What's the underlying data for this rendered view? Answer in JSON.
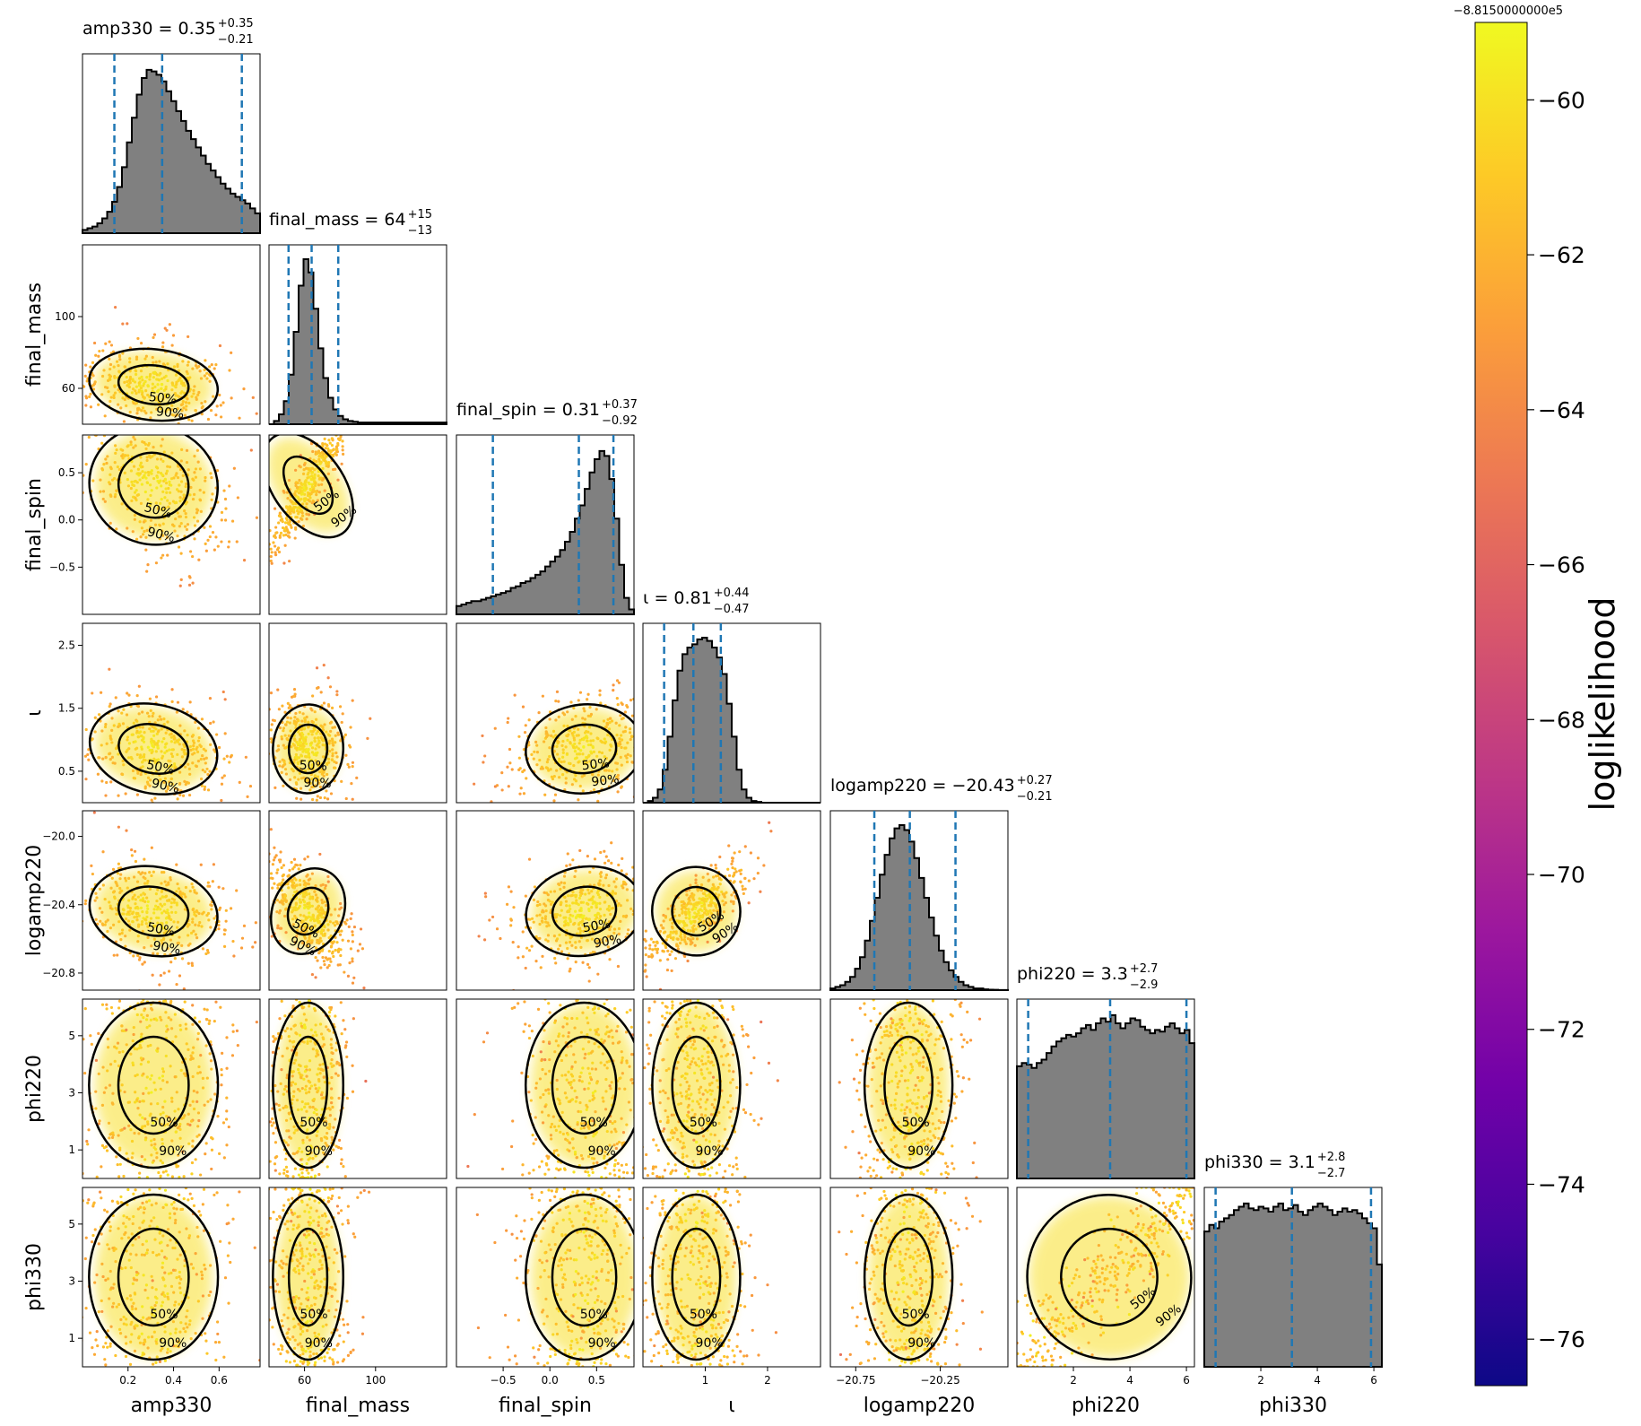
{
  "chart_data": {
    "type": "corner",
    "parameters": [
      {
        "name": "amp330",
        "label": "amp330",
        "range": [
          0.0,
          0.78
        ],
        "ticks": [
          0.2,
          0.4,
          0.6
        ],
        "tick_labels": [
          "0.2",
          "0.4",
          "0.6"
        ],
        "title": {
          "text": "amp330 = 0.35",
          "sup": "+0.35",
          "sub": "−0.21"
        },
        "median": 0.35,
        "lower": 0.14,
        "upper": 0.7
      },
      {
        "name": "final_mass",
        "label": "final_mass",
        "range": [
          40,
          140
        ],
        "ticks": [
          60,
          100
        ],
        "tick_labels": [
          "60",
          "100"
        ],
        "title": {
          "text": "final_mass = 64",
          "sup": "+15",
          "sub": "−13"
        },
        "median": 64,
        "lower": 51,
        "upper": 79
      },
      {
        "name": "final_spin",
        "label": "final_spin",
        "range": [
          -1.0,
          0.9
        ],
        "ticks": [
          -0.5,
          0.0,
          0.5
        ],
        "tick_labels": [
          "−0.5",
          "0.0",
          "0.5"
        ],
        "title": {
          "text": "final_spin = 0.31",
          "sup": "+0.37",
          "sub": "−0.92"
        },
        "median": 0.31,
        "lower": -0.61,
        "upper": 0.68
      },
      {
        "name": "iota",
        "label": "ι",
        "range": [
          0.0,
          2.85
        ],
        "ticks": [
          0.5,
          1.5,
          2.5
        ],
        "tick_labels": [
          "0.5",
          "1.5",
          "2.5"
        ],
        "xticks": [
          1,
          2
        ],
        "xtick_labels": [
          "1",
          "2"
        ],
        "title": {
          "text": "ι = 0.81",
          "sup": "+0.44",
          "sub": "−0.47"
        },
        "median": 0.81,
        "lower": 0.34,
        "upper": 1.25
      },
      {
        "name": "logamp220",
        "label": "logamp220",
        "range": [
          -20.9,
          -19.85
        ],
        "ticks": [
          -20.8,
          -20.4,
          -20.0
        ],
        "tick_labels": [
          "−20.8",
          "−20.4",
          "−20.0"
        ],
        "xticks": [
          -20.75,
          -20.25
        ],
        "xtick_labels": [
          "−20.75",
          "−20.25"
        ],
        "title": {
          "text": "logamp220 = −20.43",
          "sup": "+0.27",
          "sub": "−0.21"
        },
        "median": -20.43,
        "lower": -20.64,
        "upper": -20.16
      },
      {
        "name": "phi220",
        "label": "phi220",
        "range": [
          0.0,
          6.283
        ],
        "ticks": [
          1,
          3,
          5
        ],
        "tick_labels": [
          "1",
          "3",
          "5"
        ],
        "xticks": [
          2,
          4,
          6
        ],
        "xtick_labels": [
          "2",
          "4",
          "6"
        ],
        "title": {
          "text": "phi220 = 3.3",
          "sup": "+2.7",
          "sub": "−2.9"
        },
        "median": 3.3,
        "lower": 0.4,
        "upper": 6.0
      },
      {
        "name": "phi330",
        "label": "phi330",
        "range": [
          0.0,
          6.283
        ],
        "ticks": [
          1,
          3,
          5
        ],
        "tick_labels": [
          "1",
          "3",
          "5"
        ],
        "xticks": [
          2,
          4,
          6
        ],
        "xtick_labels": [
          "2",
          "4",
          "6"
        ],
        "title": {
          "text": "phi330 = 3.1",
          "sup": "+2.8",
          "sub": "−2.7"
        },
        "median": 3.1,
        "lower": 0.4,
        "upper": 5.9
      }
    ],
    "histograms": [
      [
        2,
        3,
        4,
        6,
        9,
        13,
        19,
        28,
        40,
        55,
        70,
        84,
        94,
        99,
        98,
        96,
        92,
        86,
        80,
        74,
        68,
        62,
        57,
        52,
        47,
        42,
        38,
        34,
        30,
        27,
        24,
        22,
        20,
        18,
        15,
        12
      ],
      [
        0,
        2,
        6,
        14,
        30,
        56,
        84,
        100,
        92,
        70,
        46,
        28,
        16,
        9,
        5,
        3,
        2,
        1.5,
        1,
        1,
        1,
        1,
        1,
        1,
        1,
        1,
        1,
        1,
        1,
        1,
        1,
        1,
        1,
        1,
        1,
        1
      ],
      [
        5,
        6,
        7,
        8,
        8,
        9,
        10,
        11,
        12,
        13,
        14,
        16,
        17,
        19,
        20,
        22,
        24,
        26,
        29,
        32,
        35,
        39,
        44,
        50,
        58,
        66,
        76,
        86,
        94,
        99,
        96,
        82,
        58,
        30,
        10,
        3
      ],
      [
        0,
        1,
        3,
        8,
        20,
        40,
        62,
        80,
        90,
        94,
        96,
        99,
        100,
        98,
        94,
        88,
        78,
        60,
        40,
        20,
        8,
        3,
        1,
        0.5,
        0,
        0,
        0,
        0,
        0,
        0,
        0,
        0,
        0,
        0,
        0,
        0
      ],
      [
        1,
        2,
        3,
        5,
        8,
        13,
        20,
        30,
        42,
        56,
        70,
        82,
        92,
        98,
        100,
        97,
        90,
        80,
        68,
        56,
        44,
        33,
        24,
        17,
        12,
        8,
        5,
        3,
        2,
        1,
        1,
        0.5,
        0.3,
        0.2,
        0.1,
        0.1
      ],
      [
        68,
        70,
        69,
        67,
        70,
        72,
        76,
        80,
        83,
        85,
        87,
        86,
        88,
        91,
        93,
        90,
        94,
        97,
        95,
        99,
        94,
        91,
        94,
        97,
        96,
        92,
        90,
        88,
        90,
        89,
        92,
        94,
        91,
        88,
        90,
        82
      ],
      [
        82,
        86,
        84,
        88,
        90,
        92,
        95,
        97,
        99,
        96,
        95,
        97,
        96,
        94,
        97,
        99,
        95,
        96,
        98,
        94,
        92,
        95,
        97,
        99,
        97,
        95,
        92,
        94,
        96,
        94,
        95,
        93,
        90,
        87,
        84,
        62
      ]
    ],
    "contour_levels": [
      "50%",
      "90%"
    ],
    "colorbar": {
      "label": "loglikelihood",
      "offset_text": "−8.8150000000e5",
      "range": [
        -76.6,
        -59.0
      ],
      "ticks": [
        -60,
        -62,
        -64,
        -66,
        -68,
        -70,
        -72,
        -74,
        -76
      ],
      "tick_labels": [
        "−60",
        "−62",
        "−64",
        "−66",
        "−68",
        "−70",
        "−72",
        "−74",
        "−76"
      ],
      "colormap": "plasma",
      "colormap_stops": [
        "#0d0887",
        "#46039f",
        "#7201a8",
        "#9c179e",
        "#bd3786",
        "#d8576b",
        "#ed7953",
        "#fb9f3a",
        "#fdca26",
        "#f0f921"
      ]
    },
    "colors": {
      "histogram_fill": "#808080",
      "quantile_line": "#1f77b4",
      "contour": "#000000"
    }
  }
}
